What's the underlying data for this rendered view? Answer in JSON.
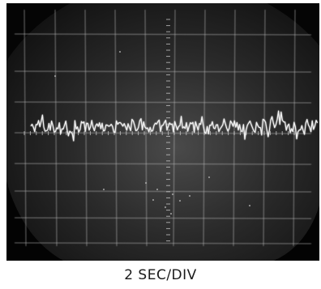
{
  "photo": {
    "subject": "oscilloscope-trace"
  },
  "caption": {
    "text": "2 SEC/DIV"
  },
  "colors": {
    "background": "#050505",
    "screen_glow": "#3a3a3a",
    "graticule": "#bfbfbf",
    "trace": "#f2f2f2",
    "caption_text": "#1a1a1a"
  }
}
